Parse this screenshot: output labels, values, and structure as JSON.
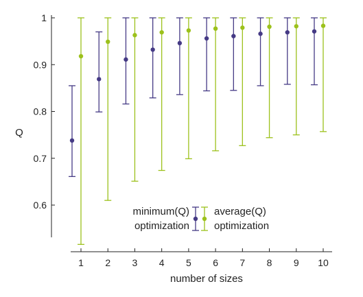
{
  "chart_data": {
    "type": "scatter",
    "title": "",
    "xlabel": "number of sizes",
    "ylabel": "Q",
    "x": [
      1,
      2,
      3,
      4,
      5,
      6,
      7,
      8,
      9,
      10
    ],
    "x_ticks": [
      "1",
      "2",
      "3",
      "4",
      "5",
      "6",
      "7",
      "8",
      "9",
      "10"
    ],
    "y_ticks": [
      "0.6",
      "0.7",
      "0.8",
      "0.9",
      "1"
    ],
    "y_tick_values": [
      0.6,
      0.7,
      0.8,
      0.9,
      1.0
    ],
    "xlim": [
      0.3,
      10.4
    ],
    "ylim": [
      0.54,
      1.0
    ],
    "grid": false,
    "legend_position": "bottom-center",
    "series": [
      {
        "name": "minimum(Q) optimization",
        "legend_lines": [
          "minimum(Q)",
          "optimization"
        ],
        "color": "#453a85",
        "values": [
          0.738,
          0.869,
          0.911,
          0.932,
          0.946,
          0.956,
          0.961,
          0.966,
          0.969,
          0.971
        ],
        "err_low": [
          0.661,
          0.799,
          0.816,
          0.829,
          0.836,
          0.844,
          0.845,
          0.855,
          0.858,
          0.857
        ],
        "err_high": [
          0.855,
          0.97,
          1.0,
          1.0,
          1.0,
          1.0,
          1.0,
          1.0,
          1.0,
          1.0
        ]
      },
      {
        "name": "average(Q) optimization",
        "legend_lines": [
          "average(Q)",
          "optimization"
        ],
        "color": "#9cc11b",
        "values": [
          0.918,
          0.949,
          0.963,
          0.969,
          0.973,
          0.977,
          0.979,
          0.981,
          0.982,
          0.983
        ],
        "err_low": [
          0.516,
          0.61,
          0.651,
          0.674,
          0.699,
          0.716,
          0.727,
          0.744,
          0.75,
          0.757
        ],
        "err_high": [
          1.0,
          1.0,
          1.0,
          1.0,
          1.0,
          1.0,
          1.0,
          1.0,
          1.0,
          1.0
        ]
      }
    ]
  }
}
